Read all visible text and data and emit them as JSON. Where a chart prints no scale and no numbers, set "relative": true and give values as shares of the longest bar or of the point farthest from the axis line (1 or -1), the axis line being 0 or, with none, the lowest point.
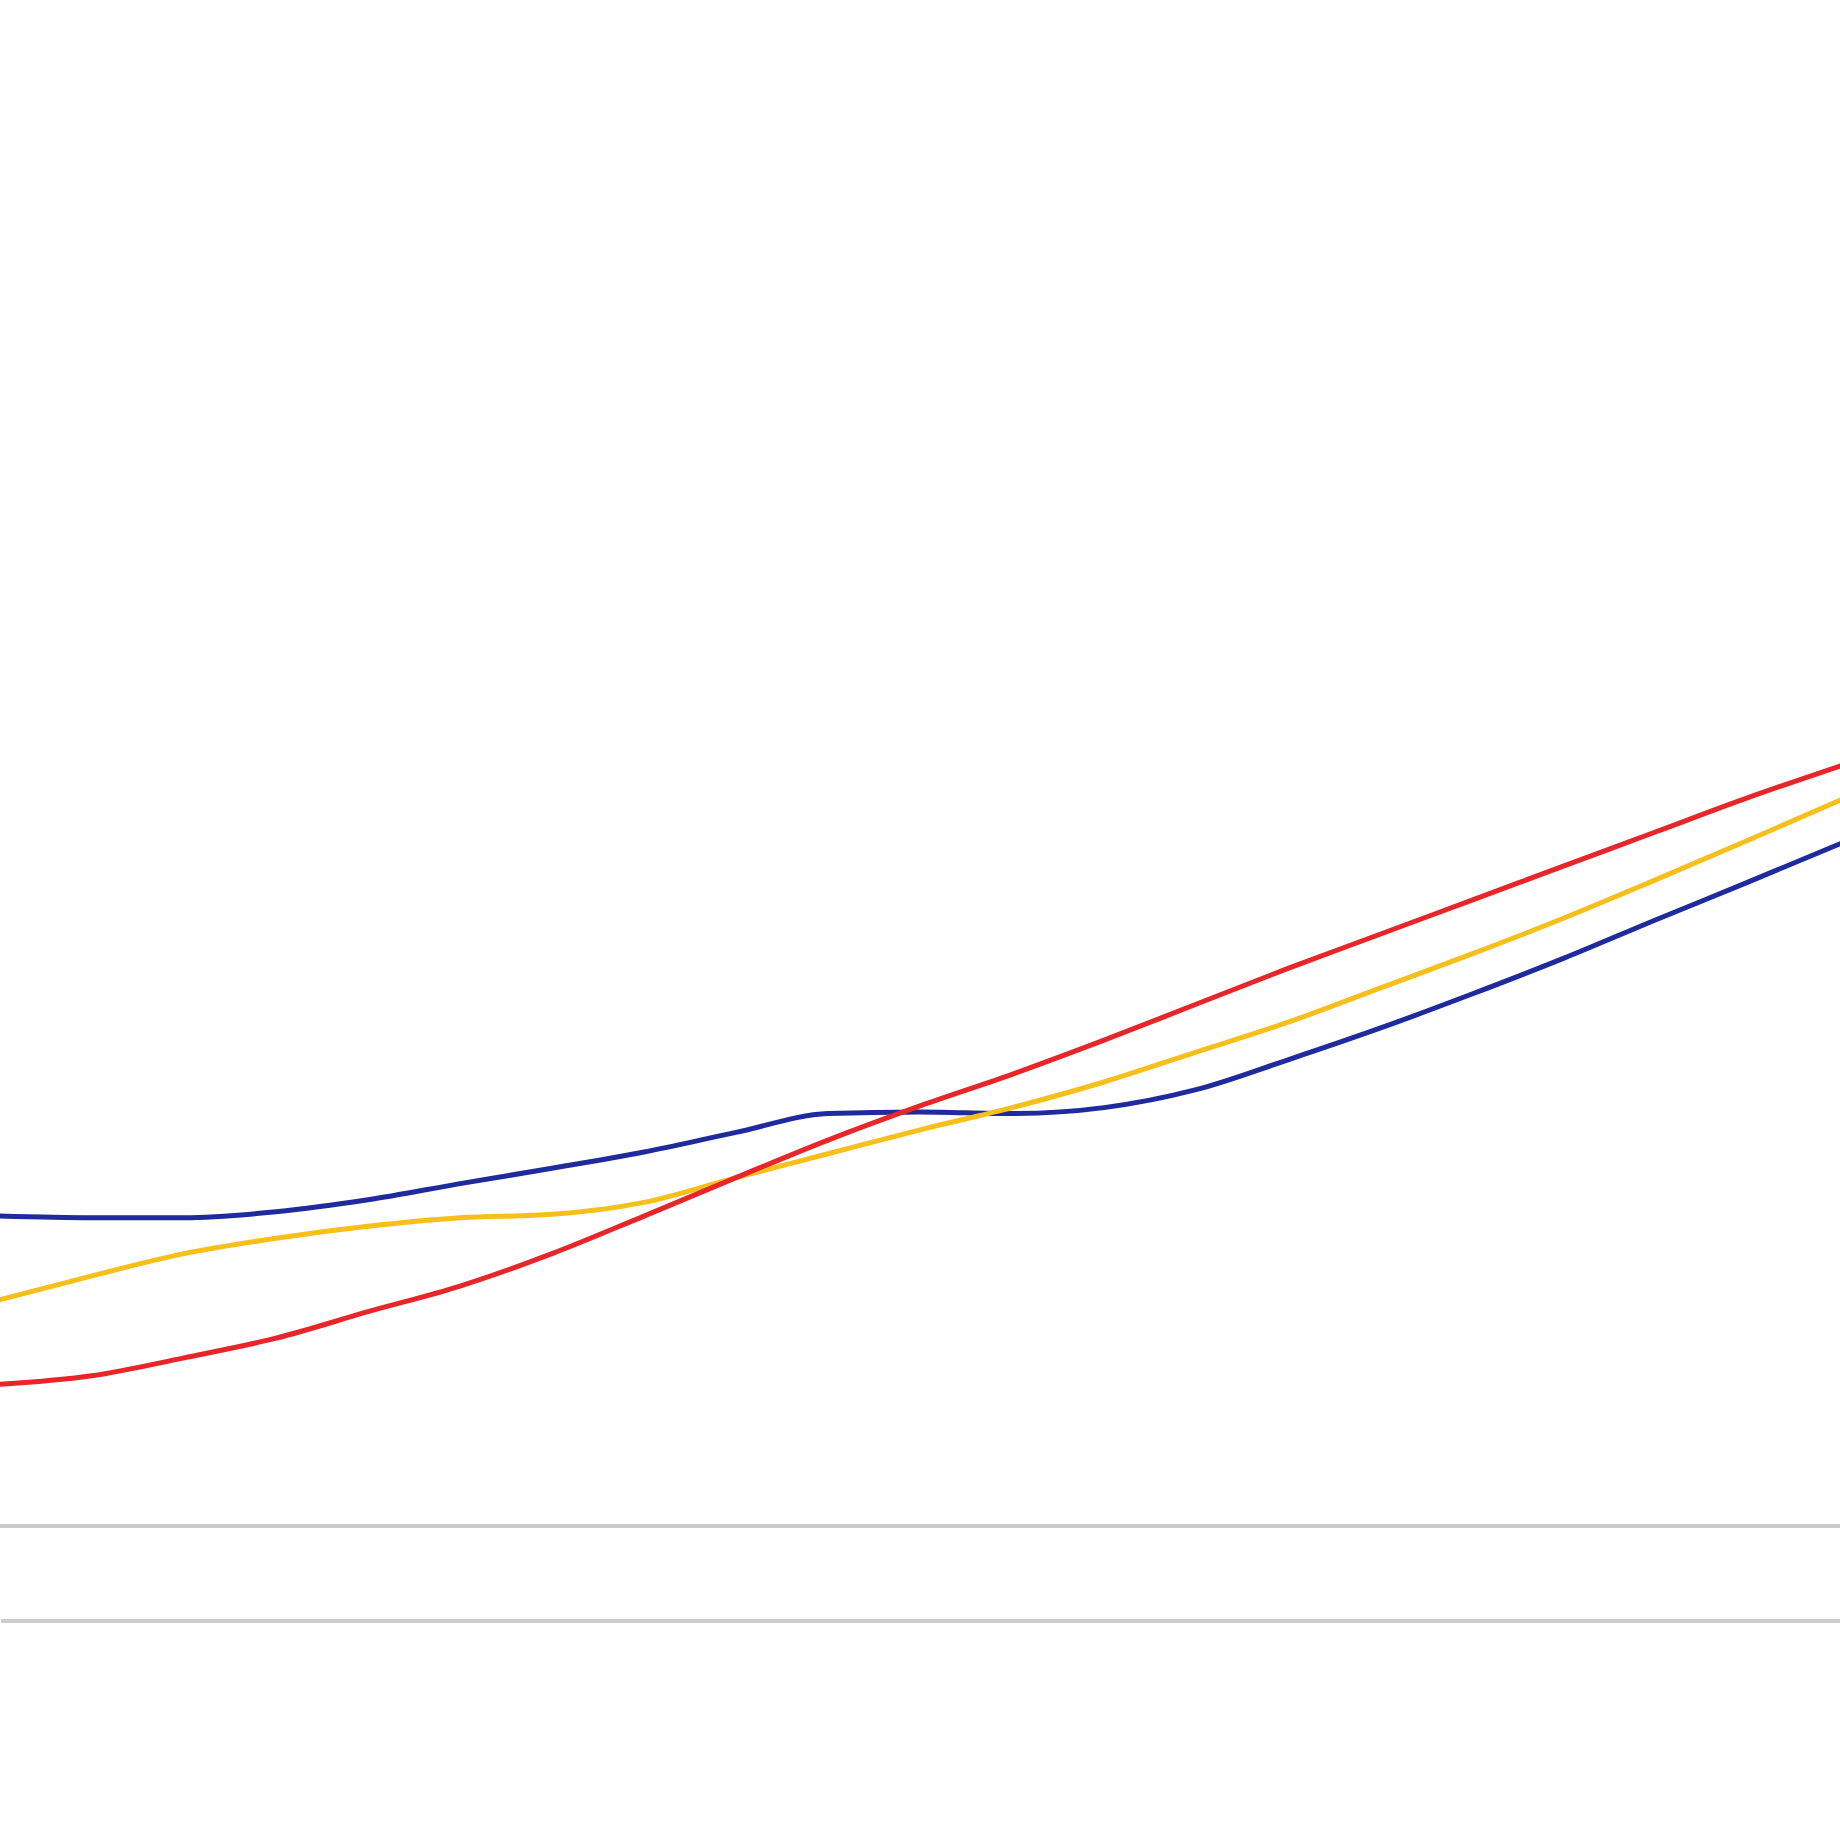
{
  "chart_data": {
    "type": "line",
    "relative": true,
    "grid": false,
    "line_style": "solid",
    "marker": "none",
    "categories": [
      null,
      null,
      null,
      null,
      null,
      null,
      null,
      null,
      null,
      null,
      null,
      null,
      null,
      null,
      null,
      null,
      null,
      null,
      null,
      null,
      null
    ],
    "series": [
      {
        "color": "#1f2a9c",
        "values": [
          0.473,
          0.471,
          0.471,
          0.478,
          0.492,
          0.511,
          0.529,
          0.548,
          0.571,
          0.593,
          0.595,
          0.593,
          0.6,
          0.621,
          0.656,
          0.693,
          0.733,
          0.775,
          0.82,
          0.864,
          0.909
        ]
      },
      {
        "color": "#f6bf1a",
        "values": [
          0.375,
          0.403,
          0.429,
          0.447,
          0.461,
          0.471,
          0.475,
          0.489,
          0.518,
          0.546,
          0.574,
          0.6,
          0.63,
          0.665,
          0.7,
          0.74,
          0.78,
          0.822,
          0.867,
          0.913,
          0.96
        ]
      },
      {
        "color": "#e8262a",
        "values": [
          0.276,
          0.286,
          0.307,
          0.33,
          0.361,
          0.391,
          0.429,
          0.473,
          0.518,
          0.562,
          0.602,
          0.639,
          0.679,
          0.721,
          0.763,
          0.803,
          0.843,
          0.883,
          0.923,
          0.963,
          1.0
        ]
      }
    ],
    "ref_lines": [
      {
        "axis": "y",
        "value": 0.11,
        "color": "#cccccc"
      }
    ]
  }
}
